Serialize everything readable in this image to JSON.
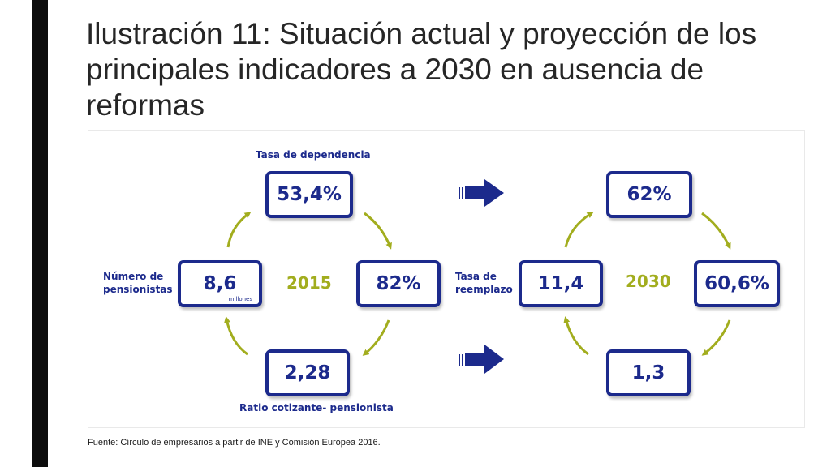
{
  "title": {
    "prefix": "Ilustración 11:",
    "text": " Situación actual y proyección de los principales indicadores a 2030 en ausencia de reformas"
  },
  "diagram": {
    "labels": {
      "dependency_rate": "Tasa de dependencia",
      "pensioners_line1": "Número de",
      "pensioners_line2": "pensionistas",
      "replacement_line1": "Tasa de",
      "replacement_line2": "reemplazo",
      "contributor_ratio": "Ratio cotizante- pensionista"
    },
    "cycle_2015": {
      "year": "2015",
      "top": "53,4%",
      "left": "8,6",
      "left_unit": "millones",
      "right": "82%",
      "bottom": "2,28"
    },
    "cycle_2030": {
      "year": "2030",
      "top": "62%",
      "left": "11,4",
      "right": "60,6%",
      "bottom": "1,3"
    }
  },
  "source": "Fuente: Círculo de empresarios a partir de INE y Comisión Europea 2016.",
  "colors": {
    "box_border": "#1c2a8c",
    "cycle_arrow": "#a2ad1e",
    "transition_arrow": "#1c2a8c"
  }
}
